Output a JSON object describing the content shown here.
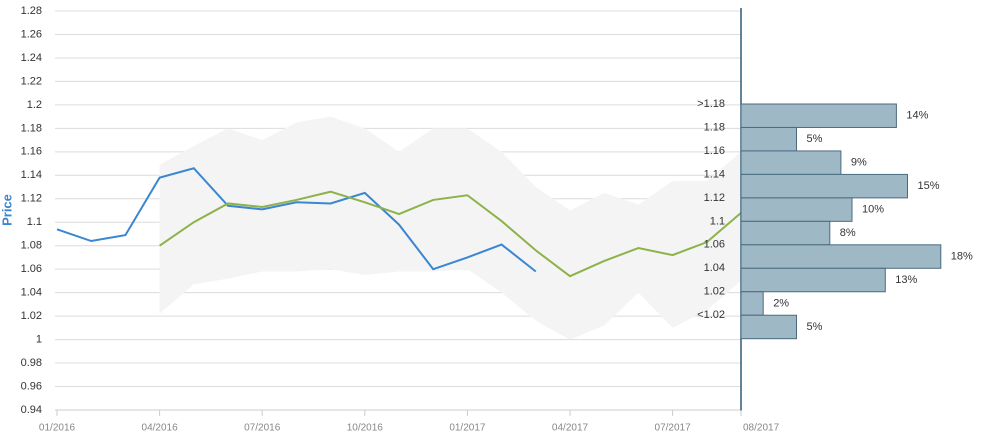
{
  "chart_data": [
    {
      "type": "line",
      "ylabel": "Price",
      "ylim": [
        0.94,
        1.28
      ],
      "yticks": [
        0.94,
        0.96,
        0.98,
        1,
        1.02,
        1.04,
        1.06,
        1.08,
        1.1,
        1.12,
        1.14,
        1.16,
        1.18,
        1.2,
        1.22,
        1.24,
        1.26,
        1.28
      ],
      "xlim": [
        0,
        20
      ],
      "xticks": [
        {
          "value": 0,
          "label": "01/2016"
        },
        {
          "value": 3,
          "label": "04/2016"
        },
        {
          "value": 6,
          "label": "07/2016"
        },
        {
          "value": 9,
          "label": "10/2016"
        },
        {
          "value": 12,
          "label": "01/2017"
        },
        {
          "value": 15,
          "label": "04/2017"
        },
        {
          "value": 18,
          "label": "07/2017"
        },
        {
          "value": 20,
          "label": "08/2017"
        }
      ],
      "grid": true,
      "band": {
        "color": "#f4f4f4",
        "x": [
          3,
          4,
          5,
          6,
          7,
          8,
          9,
          10,
          11,
          12,
          13,
          14,
          15,
          16,
          17,
          18,
          19,
          20
        ],
        "upper": [
          1.149,
          1.165,
          1.18,
          1.17,
          1.185,
          1.19,
          1.18,
          1.16,
          1.18,
          1.18,
          1.16,
          1.13,
          1.11,
          1.125,
          1.115,
          1.135,
          1.135,
          1.16
        ],
        "lower": [
          1.022,
          1.047,
          1.052,
          1.058,
          1.058,
          1.06,
          1.055,
          1.058,
          1.058,
          1.06,
          1.04,
          1.016,
          1.0,
          1.012,
          1.04,
          1.01,
          1.025,
          1.05
        ]
      },
      "series": [
        {
          "color": "#3a86d1",
          "x": [
            0,
            1,
            2,
            3,
            4,
            5,
            6,
            7,
            8,
            9,
            10,
            11,
            12,
            13,
            14
          ],
          "values": [
            1.094,
            1.084,
            1.089,
            1.138,
            1.146,
            1.114,
            1.111,
            1.117,
            1.116,
            1.125,
            1.098,
            1.06,
            1.07,
            1.081,
            1.058
          ]
        },
        {
          "color": "#8db24a",
          "x": [
            3,
            4,
            5,
            6,
            7,
            8,
            9,
            10,
            11,
            12,
            13,
            14,
            15,
            16,
            17,
            18,
            19,
            20
          ],
          "values": [
            1.08,
            1.1,
            1.116,
            1.113,
            1.119,
            1.126,
            1.117,
            1.107,
            1.119,
            1.123,
            1.101,
            1.076,
            1.054,
            1.067,
            1.078,
            1.072,
            1.083,
            1.108
          ]
        }
      ]
    },
    {
      "type": "bar",
      "orientation": "horizontal",
      "color": "#9fb8c6",
      "categories": [
        ">1.18",
        "1.18",
        "1.16",
        "1.14",
        "1.12",
        "1.1",
        "1.06",
        "1.04",
        "1.02",
        "<1.02"
      ],
      "values": [
        14,
        5,
        9,
        15,
        10,
        8,
        18,
        13,
        2,
        5
      ],
      "value_labels": [
        "14%",
        "5%",
        "9%",
        "15%",
        "10%",
        "8%",
        "18%",
        "13%",
        "2%",
        "5%"
      ]
    }
  ]
}
